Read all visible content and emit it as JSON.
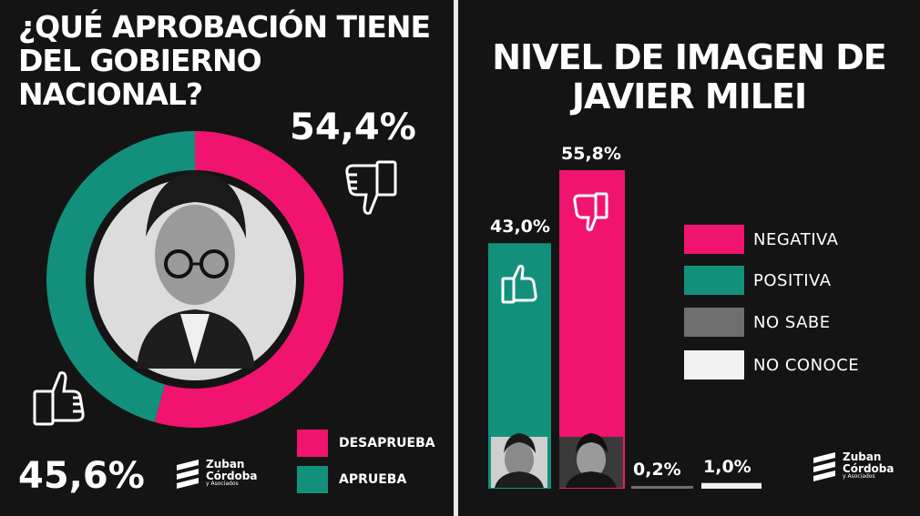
{
  "colors": {
    "negative": "#f0146f",
    "positive": "#13907c",
    "no_sabe": "#6e6e6e",
    "no_conoce": "#f2f2f2",
    "background": "#141414"
  },
  "left": {
    "title": "¿QUÉ APROBACIÓN TIENE DEL GOBIERNO NACIONAL?",
    "negative_pct_label": "54,4%",
    "positive_pct_label": "45,6%",
    "legend": [
      "DESAPRUEBA",
      "APRUEBA"
    ],
    "logo": {
      "line1": "Zuban",
      "line2": "Córdoba",
      "line3": "y Asociados"
    }
  },
  "right": {
    "title_line1": "NIVEL DE IMAGEN DE",
    "title_line2": "JAVIER MILEI",
    "legend": [
      "NEGATIVA",
      "POSITIVA",
      "NO SABE",
      "NO CONOCE"
    ],
    "logo": {
      "line1": "Zuban",
      "line2": "Córdoba",
      "line3": "y Asociados"
    }
  },
  "chart_data": [
    {
      "type": "pie",
      "title": "¿QUÉ APROBACIÓN TIENE DEL GOBIERNO NACIONAL?",
      "categories": [
        "DESAPRUEBA",
        "APRUEBA"
      ],
      "values": [
        54.4,
        45.6
      ],
      "labels": [
        "54,4%",
        "45,6%"
      ],
      "colors": [
        "#f0146f",
        "#13907c"
      ],
      "donut": true
    },
    {
      "type": "bar",
      "title": "NIVEL DE IMAGEN DE JAVIER MILEI",
      "categories": [
        "POSITIVA",
        "NEGATIVA",
        "NO SABE",
        "NO CONOCE"
      ],
      "values": [
        43.0,
        55.8,
        0.2,
        1.0
      ],
      "labels": [
        "43,0%",
        "55,8%",
        "0,2%",
        "1,0%"
      ],
      "colors": [
        "#13907c",
        "#f0146f",
        "#6e6e6e",
        "#f2f2f2"
      ],
      "ylim": [
        0,
        55.8
      ],
      "legend_position": "right"
    }
  ]
}
